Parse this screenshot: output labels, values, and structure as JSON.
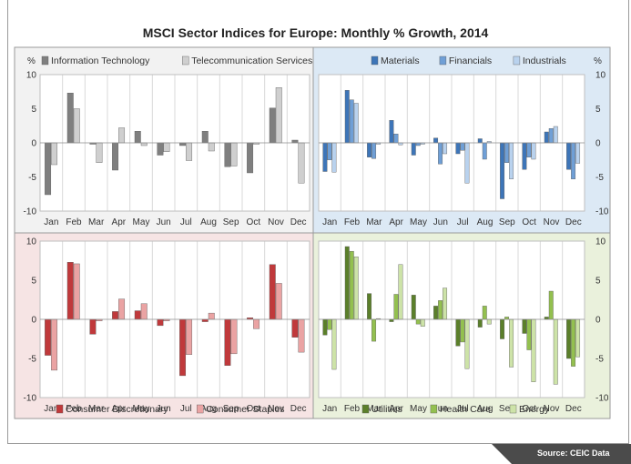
{
  "title": "MSCI Sector Indices for Europe: Monthly % Growth, 2014",
  "source": "Source: CEIC Data",
  "chart_data": [
    {
      "type": "bar",
      "panel": "top-left",
      "background": "#f2f2f2",
      "unit_label": "%",
      "categories": [
        "Jan",
        "Feb",
        "Mar",
        "Apr",
        "May",
        "Jun",
        "Jul",
        "Aug",
        "Sep",
        "Oct",
        "Nov",
        "Dec"
      ],
      "ylim": [
        -10,
        10
      ],
      "yticks": [
        10,
        5,
        0,
        -5,
        -10
      ],
      "ytick_side": "left",
      "legend_position": "top",
      "series": [
        {
          "name": "Information Technology",
          "color": "#7f7f7f",
          "values": [
            -7.6,
            7.3,
            -0.2,
            -4.0,
            1.7,
            -1.8,
            -0.4,
            1.7,
            -3.5,
            -4.4,
            5.1,
            0.4
          ]
        },
        {
          "name": "Telecommunication Services",
          "color": "#cfcfcf",
          "values": [
            -3.2,
            5.0,
            -2.9,
            2.2,
            -0.4,
            -1.3,
            -2.6,
            -1.2,
            -3.4,
            -0.2,
            8.1,
            -5.9
          ]
        }
      ]
    },
    {
      "type": "bar",
      "panel": "top-right",
      "background": "#dce9f5",
      "unit_label": "%",
      "categories": [
        "Jan",
        "Feb",
        "Mar",
        "Apr",
        "May",
        "Jun",
        "Jul",
        "Aug",
        "Sep",
        "Oct",
        "Nov",
        "Dec"
      ],
      "ylim": [
        -10,
        10
      ],
      "yticks": [
        10,
        5,
        0,
        -5,
        -10
      ],
      "ytick_side": "right",
      "legend_position": "top",
      "series": [
        {
          "name": "Materials",
          "color": "#3d75b8",
          "values": [
            -4.2,
            7.7,
            -2.1,
            3.3,
            -1.8,
            0.7,
            -1.6,
            0.6,
            -8.2,
            -3.9,
            1.6,
            -3.9
          ]
        },
        {
          "name": "Financials",
          "color": "#6f9fd6",
          "values": [
            -2.5,
            6.3,
            -2.3,
            1.3,
            -0.4,
            -3.1,
            -1.1,
            -2.4,
            -2.9,
            -2.1,
            2.1,
            -5.3
          ]
        },
        {
          "name": "Industrials",
          "color": "#b9d2ee",
          "values": [
            -4.3,
            5.8,
            -0.2,
            -0.3,
            -0.2,
            -1.6,
            -5.9,
            0.2,
            -5.3,
            -2.4,
            2.4,
            -3.0
          ]
        }
      ]
    },
    {
      "type": "bar",
      "panel": "bottom-left",
      "background": "#f6e4e4",
      "categories": [
        "Jan",
        "Feb",
        "Mar",
        "Apr",
        "May",
        "Jun",
        "Jul",
        "Aug",
        "Sep",
        "Oct",
        "Nov",
        "Dec"
      ],
      "ylim": [
        -10,
        10
      ],
      "yticks": [
        10,
        5,
        0,
        -5,
        -10
      ],
      "ytick_side": "left",
      "legend_position": "bottom",
      "series": [
        {
          "name": "Consumer Discretionary",
          "color": "#c0393b",
          "values": [
            -4.6,
            7.3,
            -1.9,
            1.0,
            1.1,
            -0.8,
            -7.2,
            -0.3,
            -5.9,
            0.2,
            7.0,
            -2.3
          ]
        },
        {
          "name": "Consumer Staples",
          "color": "#eaa3a3",
          "values": [
            -6.5,
            7.1,
            -0.2,
            2.6,
            2.0,
            -0.2,
            -4.5,
            0.8,
            -4.4,
            -1.2,
            4.6,
            -4.2
          ]
        }
      ]
    },
    {
      "type": "bar",
      "panel": "bottom-right",
      "background": "#eaf1dc",
      "categories": [
        "Jan",
        "Feb",
        "Mar",
        "Apr",
        "May",
        "Jun",
        "Jul",
        "Aug",
        "Sep",
        "Oct",
        "Nov",
        "Dec"
      ],
      "ylim": [
        -10,
        10
      ],
      "yticks": [
        10,
        5,
        0,
        -5,
        -10
      ],
      "ytick_side": "right",
      "legend_position": "bottom",
      "series": [
        {
          "name": "Utilities",
          "color": "#5b7f2a",
          "values": [
            -2.0,
            9.3,
            3.3,
            -0.3,
            3.1,
            1.7,
            -3.4,
            -1.0,
            -2.5,
            -1.8,
            0.3,
            -5.0
          ]
        },
        {
          "name": "Health Care",
          "color": "#93c04f",
          "values": [
            -1.3,
            8.7,
            -2.8,
            3.2,
            -0.6,
            2.4,
            -2.9,
            1.7,
            0.3,
            -3.9,
            3.6,
            -6.0
          ]
        },
        {
          "name": "Energy",
          "color": "#cde3a8",
          "values": [
            -6.4,
            8.0,
            0.1,
            7.0,
            -0.9,
            4.0,
            -6.3,
            -0.6,
            -6.1,
            -8.0,
            -8.3,
            -4.8
          ]
        }
      ]
    }
  ]
}
